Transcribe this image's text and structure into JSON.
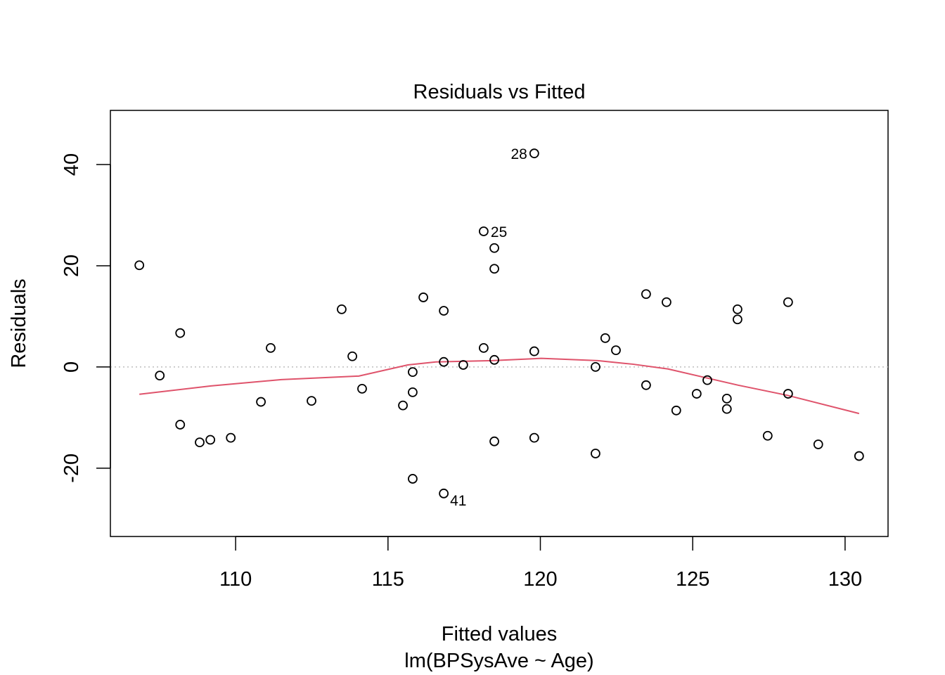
{
  "chart_data": {
    "type": "scatter",
    "title": "Residuals vs Fitted",
    "xlabel": "Fitted values",
    "subtitle": "lm(BPSysAve ~ Age)",
    "ylabel": "Residuals",
    "xlim": [
      105.89,
      131.41
    ],
    "ylim": [
      -33.5,
      50.7
    ],
    "xticks": [
      110,
      115,
      120,
      125,
      130
    ],
    "yticks": [
      -20,
      0,
      20,
      40
    ],
    "grid": false,
    "reference_line": {
      "y": 0,
      "style": "dotted",
      "color": "#bebebe"
    },
    "points": [
      [
        106.84,
        20.1
      ],
      [
        107.51,
        -1.7
      ],
      [
        108.18,
        6.7
      ],
      [
        108.18,
        -11.4
      ],
      [
        108.82,
        -14.9
      ],
      [
        109.17,
        -14.4
      ],
      [
        109.84,
        -14.0
      ],
      [
        110.83,
        -6.9
      ],
      [
        111.15,
        3.75
      ],
      [
        112.49,
        -6.7
      ],
      [
        113.48,
        11.4
      ],
      [
        113.83,
        2.1
      ],
      [
        114.15,
        -4.3
      ],
      [
        115.49,
        -7.6
      ],
      [
        115.81,
        -1.0
      ],
      [
        115.81,
        -5.0
      ],
      [
        115.81,
        -22.1
      ],
      [
        116.16,
        13.75
      ],
      [
        116.83,
        11.1
      ],
      [
        116.83,
        1.0
      ],
      [
        116.83,
        -25.0
      ],
      [
        117.47,
        0.4
      ],
      [
        118.14,
        26.8
      ],
      [
        118.14,
        3.75
      ],
      [
        118.49,
        23.5
      ],
      [
        118.49,
        19.4
      ],
      [
        118.49,
        1.4
      ],
      [
        118.49,
        -14.7
      ],
      [
        119.8,
        42.2
      ],
      [
        119.8,
        3.1
      ],
      [
        119.8,
        -14.0
      ],
      [
        121.81,
        0.0
      ],
      [
        121.81,
        -17.1
      ],
      [
        122.13,
        5.7
      ],
      [
        122.48,
        3.3
      ],
      [
        123.47,
        14.4
      ],
      [
        123.47,
        -3.6
      ],
      [
        124.14,
        12.8
      ],
      [
        124.46,
        -8.6
      ],
      [
        125.13,
        -5.3
      ],
      [
        125.48,
        -2.6
      ],
      [
        126.12,
        -6.25
      ],
      [
        126.12,
        -8.3
      ],
      [
        126.47,
        11.4
      ],
      [
        126.47,
        9.4
      ],
      [
        127.46,
        -13.6
      ],
      [
        128.13,
        12.8
      ],
      [
        128.13,
        -5.3
      ],
      [
        129.12,
        -15.3
      ],
      [
        130.46,
        -17.6
      ]
    ],
    "labeled_points": [
      {
        "label": "28",
        "x": 119.8,
        "y": 42.2,
        "side": "left"
      },
      {
        "label": "25",
        "x": 118.14,
        "y": 26.8,
        "side": "right"
      },
      {
        "label": "41",
        "x": 116.83,
        "y": -25.0,
        "side": "below-right"
      }
    ],
    "smoother": {
      "color": "#DF536B",
      "x": [
        106.84,
        109.19,
        111.5,
        114.04,
        115.65,
        116.57,
        118.42,
        120.03,
        121.88,
        123.03,
        124.19,
        125.34,
        126.49,
        128.1,
        130.46
      ],
      "y": [
        -5.4,
        -3.75,
        -2.5,
        -1.8,
        0.4,
        1.0,
        1.25,
        1.7,
        1.25,
        0.55,
        -0.4,
        -2.0,
        -3.6,
        -5.6,
        -9.2
      ]
    }
  }
}
